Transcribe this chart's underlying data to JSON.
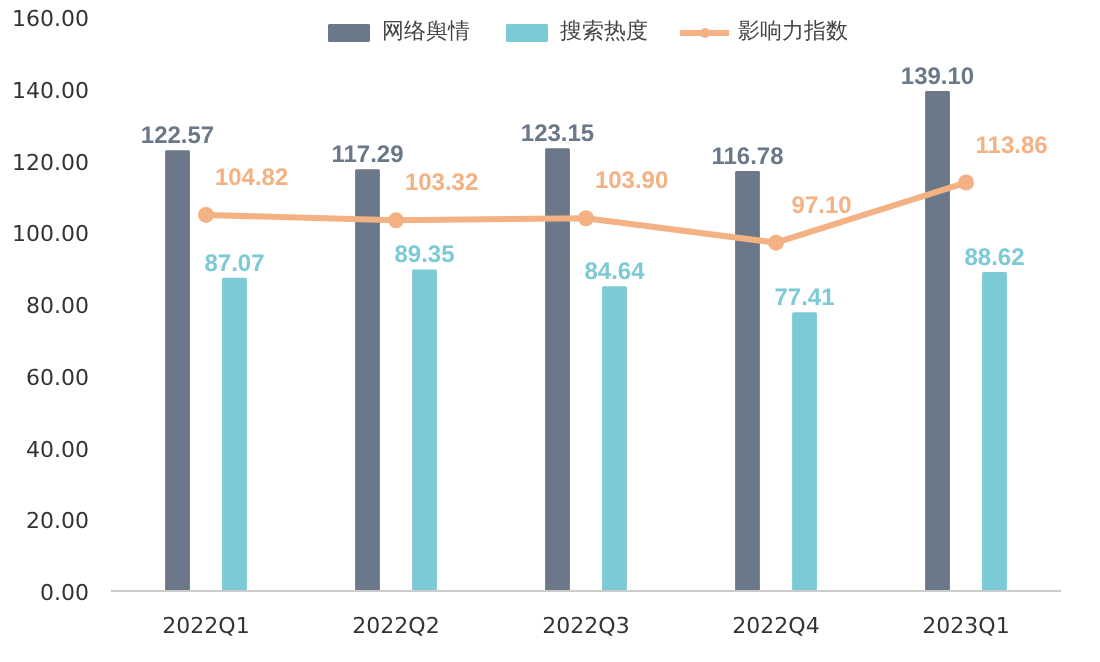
{
  "chart_data": {
    "type": "bar",
    "categories": [
      "2022Q1",
      "2022Q2",
      "2022Q3",
      "2022Q4",
      "2023Q1"
    ],
    "series": [
      {
        "name": "网络舆情",
        "color": "#6b7889",
        "values": [
          122.57,
          117.29,
          123.15,
          116.78,
          139.1
        ],
        "value_labels": [
          "122.57",
          "117.29",
          "123.15",
          "116.78",
          "139.10"
        ]
      },
      {
        "name": "搜索热度",
        "color": "#7ccad6",
        "values": [
          87.07,
          89.35,
          84.64,
          77.41,
          88.62
        ],
        "value_labels": [
          "87.07",
          "89.35",
          "84.64",
          "77.41",
          "88.62"
        ]
      },
      {
        "name": "影响力指数",
        "type": "line",
        "color": "#f4b183",
        "marker": "circle",
        "values": [
          104.82,
          103.32,
          103.9,
          97.1,
          113.86
        ],
        "value_labels": [
          "104.82",
          "103.32",
          "103.90",
          "97.10",
          "113.86"
        ]
      }
    ],
    "ylim": [
      0,
      160
    ],
    "yticks": [
      {
        "value": 0,
        "label": "0.00"
      },
      {
        "value": 20,
        "label": "20.00"
      },
      {
        "value": 40,
        "label": "40.00"
      },
      {
        "value": 60,
        "label": "60.00"
      },
      {
        "value": 80,
        "label": "80.00"
      },
      {
        "value": 100,
        "label": "100.00"
      },
      {
        "value": 120,
        "label": "120.00"
      },
      {
        "value": 140,
        "label": "140.00"
      },
      {
        "value": 160,
        "label": "160.00"
      }
    ],
    "grid": false,
    "legend": "top"
  }
}
